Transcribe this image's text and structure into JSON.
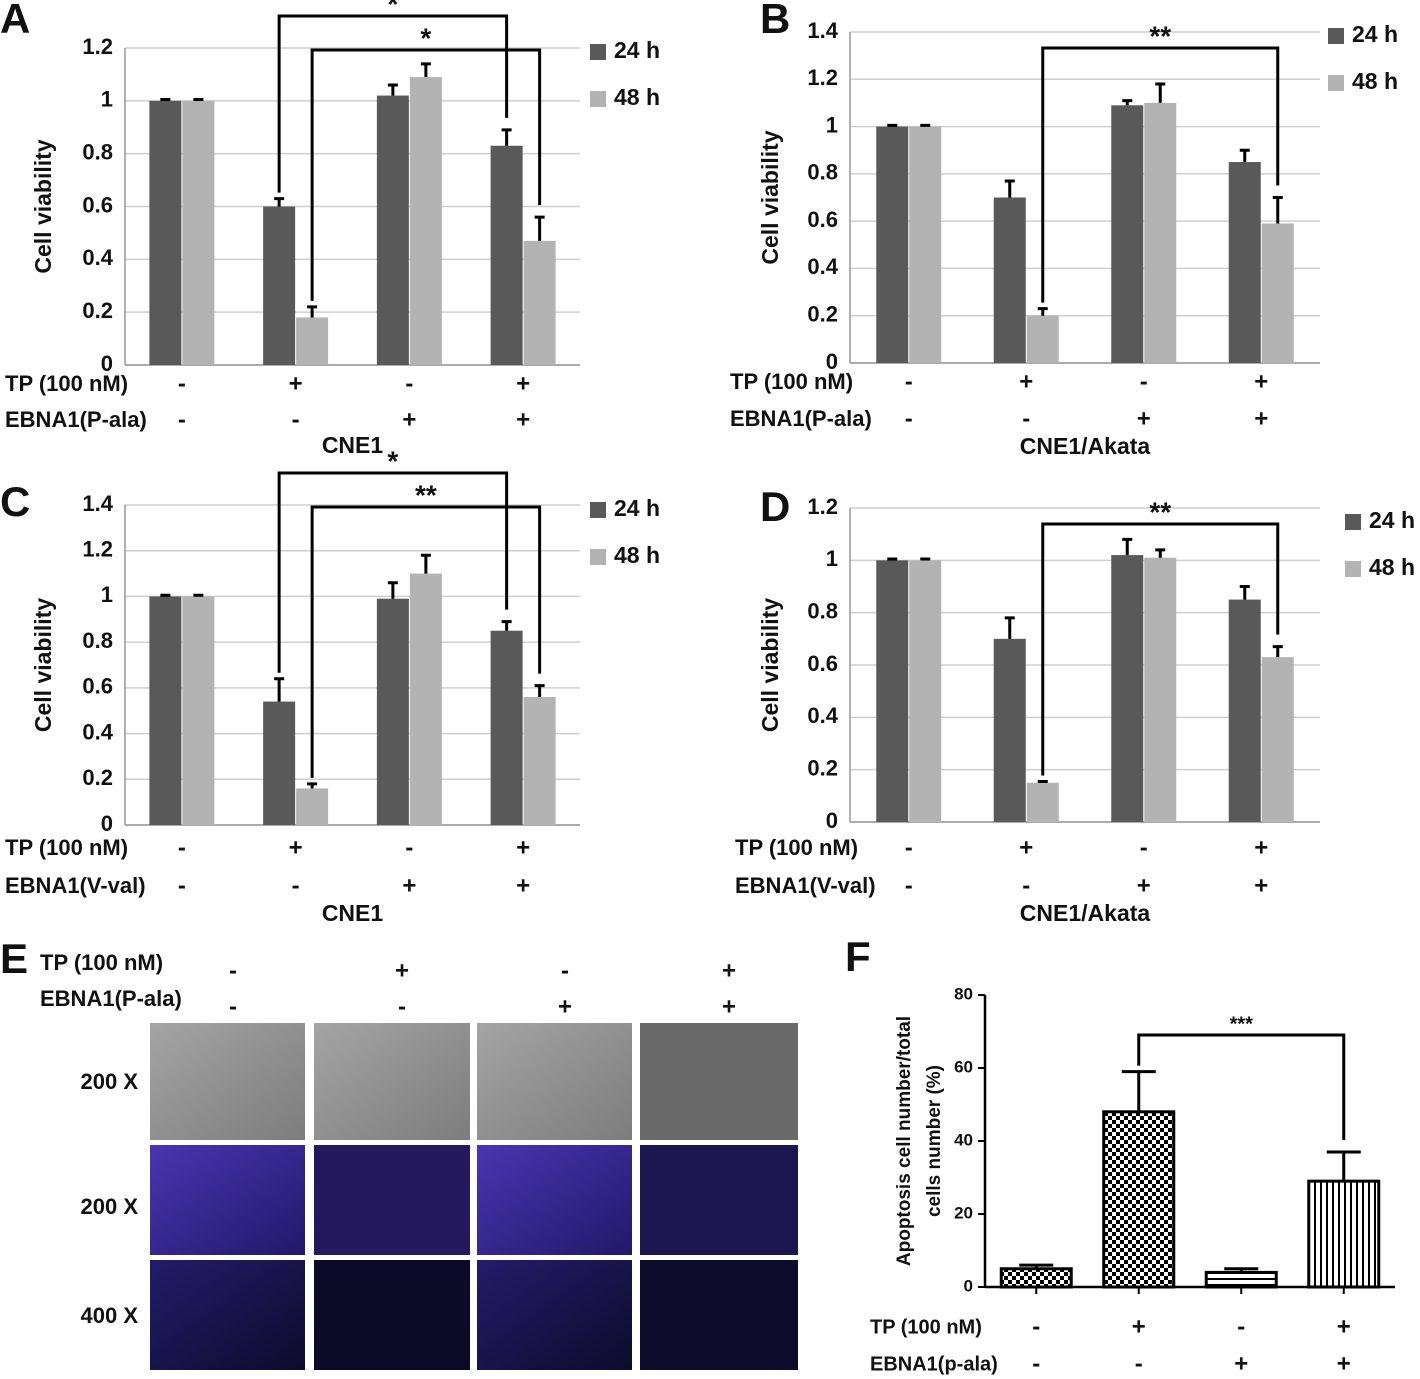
{
  "chart_data": [
    {
      "type": "bar",
      "panel": "A",
      "y_label": "Cell viability",
      "x_label": "CNE1",
      "ylim": [
        0,
        1.2
      ],
      "yticks": [
        0,
        0.2,
        0.4,
        0.6,
        0.8,
        1,
        1.2
      ],
      "grid": true,
      "legend": "right",
      "conditions": [
        {
          "name": "TP (100 nM)",
          "values": [
            "-",
            "+",
            "-",
            "+"
          ]
        },
        {
          "name": "EBNA1(P-ala)",
          "values": [
            "-",
            "-",
            "+",
            "+"
          ]
        }
      ],
      "series": [
        {
          "name": "24 h",
          "color": "#595959",
          "values": [
            1.0,
            0.6,
            1.02,
            0.83
          ],
          "errors": [
            0.005,
            0.03,
            0.04,
            0.06
          ]
        },
        {
          "name": "48 h",
          "color": "#b3b3b3",
          "values": [
            1.0,
            0.18,
            1.09,
            0.47
          ],
          "errors": [
            0.005,
            0.04,
            0.05,
            0.09
          ]
        }
      ],
      "brackets": [
        {
          "label": "*",
          "from": [
            0,
            1
          ],
          "to": [
            0,
            3
          ]
        },
        {
          "label": "*",
          "from": [
            1,
            1
          ],
          "to": [
            1,
            3
          ]
        }
      ]
    },
    {
      "type": "bar",
      "panel": "B",
      "y_label": "Cell viability",
      "x_label": "CNE1/Akata",
      "ylim": [
        0,
        1.4
      ],
      "yticks": [
        0,
        0.2,
        0.4,
        0.6,
        0.8,
        1,
        1.2,
        1.4
      ],
      "grid": true,
      "legend": "right",
      "conditions": [
        {
          "name": "TP (100 nM)",
          "values": [
            "-",
            "+",
            "-",
            "+"
          ]
        },
        {
          "name": "EBNA1(P-ala)",
          "values": [
            "-",
            "-",
            "+",
            "+"
          ]
        }
      ],
      "series": [
        {
          "name": "24 h",
          "color": "#595959",
          "values": [
            1.0,
            0.7,
            1.09,
            0.85
          ],
          "errors": [
            0.005,
            0.07,
            0.02,
            0.05
          ]
        },
        {
          "name": "48 h",
          "color": "#b3b3b3",
          "values": [
            1.0,
            0.2,
            1.1,
            0.59
          ],
          "errors": [
            0.005,
            0.03,
            0.08,
            0.11
          ]
        }
      ],
      "brackets": [
        {
          "label": "**",
          "from": [
            1,
            1
          ],
          "to": [
            1,
            3
          ]
        }
      ]
    },
    {
      "type": "bar",
      "panel": "C",
      "y_label": "Cell viability",
      "x_label": "CNE1",
      "ylim": [
        0,
        1.4
      ],
      "yticks": [
        0,
        0.2,
        0.4,
        0.6,
        0.8,
        1,
        1.2,
        1.4
      ],
      "grid": true,
      "legend": "right",
      "conditions": [
        {
          "name": "TP (100 nM)",
          "values": [
            "-",
            "+",
            "-",
            "+"
          ]
        },
        {
          "name": "EBNA1(V-val)",
          "values": [
            "-",
            "-",
            "+",
            "+"
          ]
        }
      ],
      "series": [
        {
          "name": "24 h",
          "color": "#595959",
          "values": [
            1.0,
            0.54,
            0.99,
            0.85
          ],
          "errors": [
            0.005,
            0.1,
            0.07,
            0.04
          ]
        },
        {
          "name": "48 h",
          "color": "#b3b3b3",
          "values": [
            1.0,
            0.16,
            1.1,
            0.56
          ],
          "errors": [
            0.005,
            0.02,
            0.08,
            0.05
          ]
        }
      ],
      "brackets": [
        {
          "label": "*",
          "from": [
            0,
            1
          ],
          "to": [
            0,
            3
          ]
        },
        {
          "label": "**",
          "from": [
            1,
            1
          ],
          "to": [
            1,
            3
          ]
        }
      ]
    },
    {
      "type": "bar",
      "panel": "D",
      "y_label": "Cell viability",
      "x_label": "CNE1/Akata",
      "ylim": [
        0,
        1.2
      ],
      "yticks": [
        0,
        0.2,
        0.4,
        0.6,
        0.8,
        1,
        1.2
      ],
      "grid": true,
      "legend": "right",
      "conditions": [
        {
          "name": "TP (100 nM)",
          "values": [
            "-",
            "+",
            "-",
            "+"
          ]
        },
        {
          "name": "EBNA1(V-val)",
          "values": [
            "-",
            "-",
            "+",
            "+"
          ]
        }
      ],
      "series": [
        {
          "name": "24 h",
          "color": "#595959",
          "values": [
            1.0,
            0.7,
            1.02,
            0.85
          ],
          "errors": [
            0.005,
            0.08,
            0.06,
            0.05
          ]
        },
        {
          "name": "48 h",
          "color": "#b3b3b3",
          "values": [
            1.0,
            0.15,
            1.01,
            0.63
          ],
          "errors": [
            0.005,
            0.005,
            0.03,
            0.04
          ]
        }
      ],
      "brackets": [
        {
          "label": "**",
          "from": [
            1,
            1
          ],
          "to": [
            1,
            3
          ]
        }
      ]
    },
    {
      "type": "bar",
      "panel": "F",
      "y_label": [
        "Apoptosis cell number/total",
        "cells number (%)"
      ],
      "ylim": [
        0,
        80
      ],
      "yticks": [
        0,
        20,
        40,
        60,
        80
      ],
      "grid": false,
      "conditions": [
        {
          "name": "TP (100 nM)",
          "values": [
            "-",
            "+",
            "-",
            "+"
          ]
        },
        {
          "name": "EBNA1(p-ala)",
          "values": [
            "-",
            "-",
            "+",
            "+"
          ]
        }
      ],
      "series": [
        {
          "color": "#000000",
          "values": [
            5,
            48,
            4,
            29
          ],
          "errors": [
            1,
            11,
            1,
            8
          ],
          "patterns": [
            "checker",
            "checker",
            "hlines",
            "vlines"
          ]
        }
      ],
      "brackets": [
        {
          "label": "***",
          "from": [
            0,
            1
          ],
          "to": [
            0,
            3
          ]
        }
      ]
    }
  ],
  "panel_e": {
    "panel": "E",
    "conditions": [
      {
        "name": "TP (100 nM)",
        "values": [
          "-",
          "+",
          "-",
          "+"
        ]
      },
      {
        "name": "EBNA1(P-ala)",
        "values": [
          "-",
          "-",
          "+",
          "+"
        ]
      }
    ],
    "rows": [
      "200 X",
      "200 X",
      "400 X"
    ]
  }
}
